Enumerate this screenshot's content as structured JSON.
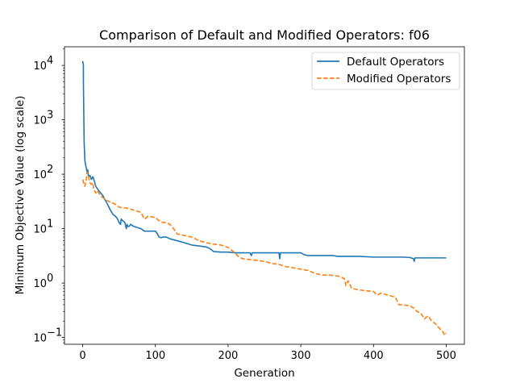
{
  "chart_data": {
    "type": "line",
    "title": "Comparison of Default and Modified Operators: f06",
    "xlabel": "Generation",
    "ylabel": "Minimum Objective Value (log scale)",
    "xlim": [
      -25,
      525
    ],
    "ylim": [
      0.075,
      22000
    ],
    "yscale": "log",
    "x_ticks": [
      0,
      100,
      200,
      300,
      400,
      500
    ],
    "x_tick_labels": [
      "0",
      "100",
      "200",
      "300",
      "400",
      "500"
    ],
    "y_ticks": [
      0.1,
      1,
      10,
      100,
      1000,
      10000
    ],
    "y_tick_labels": [
      "10",
      "10",
      "10",
      "10",
      "10",
      "10"
    ],
    "y_tick_exponents": [
      "−1",
      "0",
      "1",
      "2",
      "3",
      "4"
    ],
    "grid": false,
    "legend_position": "top-right",
    "series": [
      {
        "name": "Default Operators",
        "color": "#1f77b4",
        "style": "solid",
        "x": [
          0,
          1,
          1,
          2,
          3,
          4,
          5,
          6,
          7,
          8,
          10,
          12,
          14,
          16,
          18,
          20,
          22,
          25,
          28,
          30,
          33,
          36,
          38,
          40,
          42,
          45,
          48,
          50,
          52,
          53,
          55,
          58,
          60,
          61,
          62,
          64,
          66,
          70,
          75,
          80,
          85,
          90,
          95,
          100,
          103,
          105,
          108,
          110,
          115,
          120,
          130,
          140,
          150,
          160,
          170,
          175,
          178,
          180,
          190,
          200,
          210,
          220,
          230,
          232,
          233,
          240,
          250,
          260,
          270,
          271,
          272,
          280,
          290,
          300,
          305,
          310,
          320,
          330,
          345,
          350,
          360,
          380,
          400,
          420,
          440,
          450,
          455,
          456,
          457,
          460,
          470,
          480,
          490,
          500
        ],
        "y": [
          12000,
          10000,
          5000,
          400,
          180,
          150,
          130,
          110,
          120,
          90,
          95,
          80,
          90,
          75,
          60,
          55,
          50,
          45,
          40,
          35,
          30,
          25,
          22,
          20,
          18,
          17,
          15,
          13,
          12,
          15,
          14,
          13,
          10,
          12,
          11,
          11,
          12,
          11,
          10.5,
          10,
          9,
          9,
          9,
          9,
          8,
          7,
          6.8,
          7,
          7,
          6.5,
          6,
          5.5,
          5,
          4.8,
          4.6,
          4.3,
          4,
          3.8,
          3.7,
          3.7,
          3.6,
          3.6,
          3.6,
          3.2,
          3.6,
          3.6,
          3.6,
          3.6,
          3.6,
          2.8,
          3.6,
          3.6,
          3.6,
          3.6,
          3.3,
          3.2,
          3.2,
          3.2,
          3.2,
          3.1,
          3.1,
          3.1,
          3.0,
          3.0,
          3.0,
          2.95,
          2.8,
          2.5,
          2.9,
          2.9,
          2.9,
          2.9,
          2.9,
          2.9
        ]
      },
      {
        "name": "Modified Operators",
        "color": "#ff7f0e",
        "style": "dashed",
        "x": [
          0,
          3,
          5,
          6,
          8,
          10,
          12,
          14,
          15,
          18,
          20,
          25,
          30,
          35,
          40,
          45,
          50,
          55,
          60,
          70,
          80,
          85,
          88,
          90,
          100,
          105,
          110,
          115,
          120,
          125,
          130,
          140,
          150,
          155,
          160,
          170,
          180,
          190,
          200,
          205,
          210,
          215,
          220,
          230,
          240,
          250,
          260,
          270,
          280,
          290,
          300,
          310,
          320,
          330,
          340,
          350,
          355,
          360,
          362,
          365,
          370,
          380,
          390,
          400,
          405,
          410,
          420,
          430,
          435,
          440,
          450,
          455,
          460,
          465,
          470,
          475,
          480,
          485,
          490,
          495,
          498,
          500
        ],
        "y": [
          80,
          60,
          80,
          110,
          90,
          70,
          65,
          70,
          55,
          45,
          50,
          40,
          35,
          32,
          30,
          28,
          25,
          24,
          24,
          22,
          20,
          15,
          16,
          17,
          16,
          14,
          13,
          13,
          12,
          10,
          8,
          7.5,
          7,
          6.5,
          6,
          5.5,
          5.2,
          5,
          4.5,
          4,
          3.5,
          3,
          2.8,
          2.7,
          2.6,
          2.5,
          2.3,
          2.2,
          2,
          1.9,
          1.8,
          1.7,
          1.5,
          1.4,
          1.4,
          1.35,
          1.3,
          1.2,
          0.9,
          1.1,
          0.8,
          0.75,
          0.72,
          0.7,
          0.6,
          0.65,
          0.6,
          0.55,
          0.4,
          0.4,
          0.38,
          0.35,
          0.3,
          0.28,
          0.22,
          0.25,
          0.2,
          0.18,
          0.15,
          0.13,
          0.11,
          0.12
        ]
      }
    ]
  }
}
